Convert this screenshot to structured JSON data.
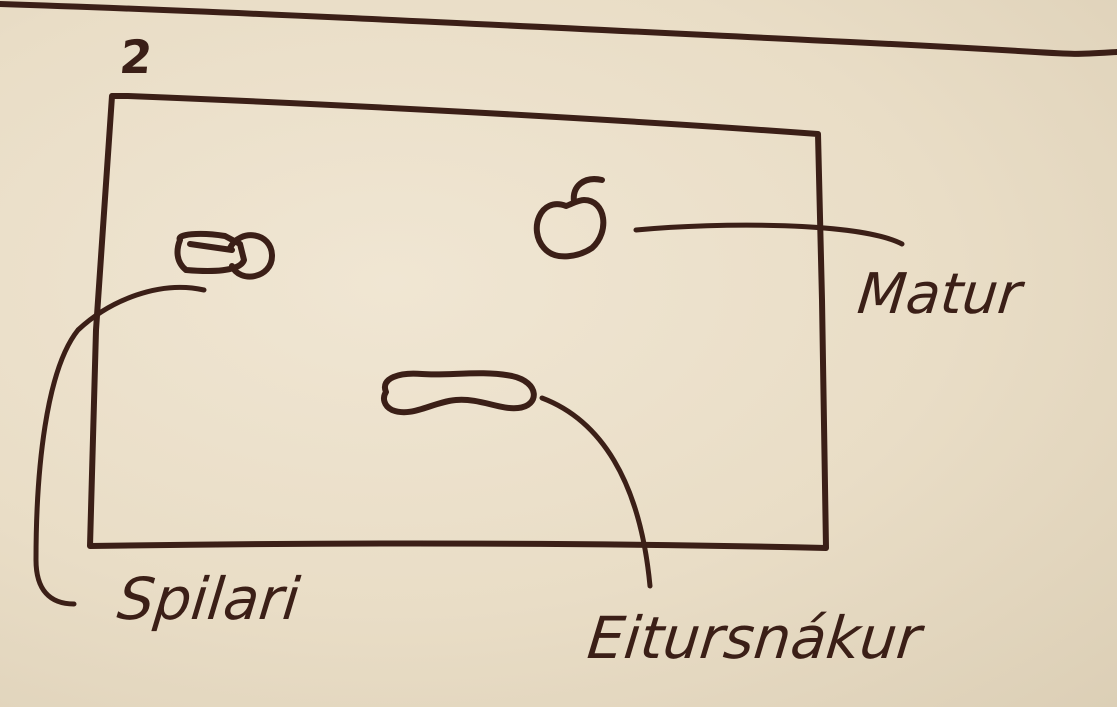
{
  "frame": {
    "number": "2"
  },
  "labels": {
    "food": "Matur",
    "player": "Spilari",
    "poison": "Eitursnákur"
  }
}
